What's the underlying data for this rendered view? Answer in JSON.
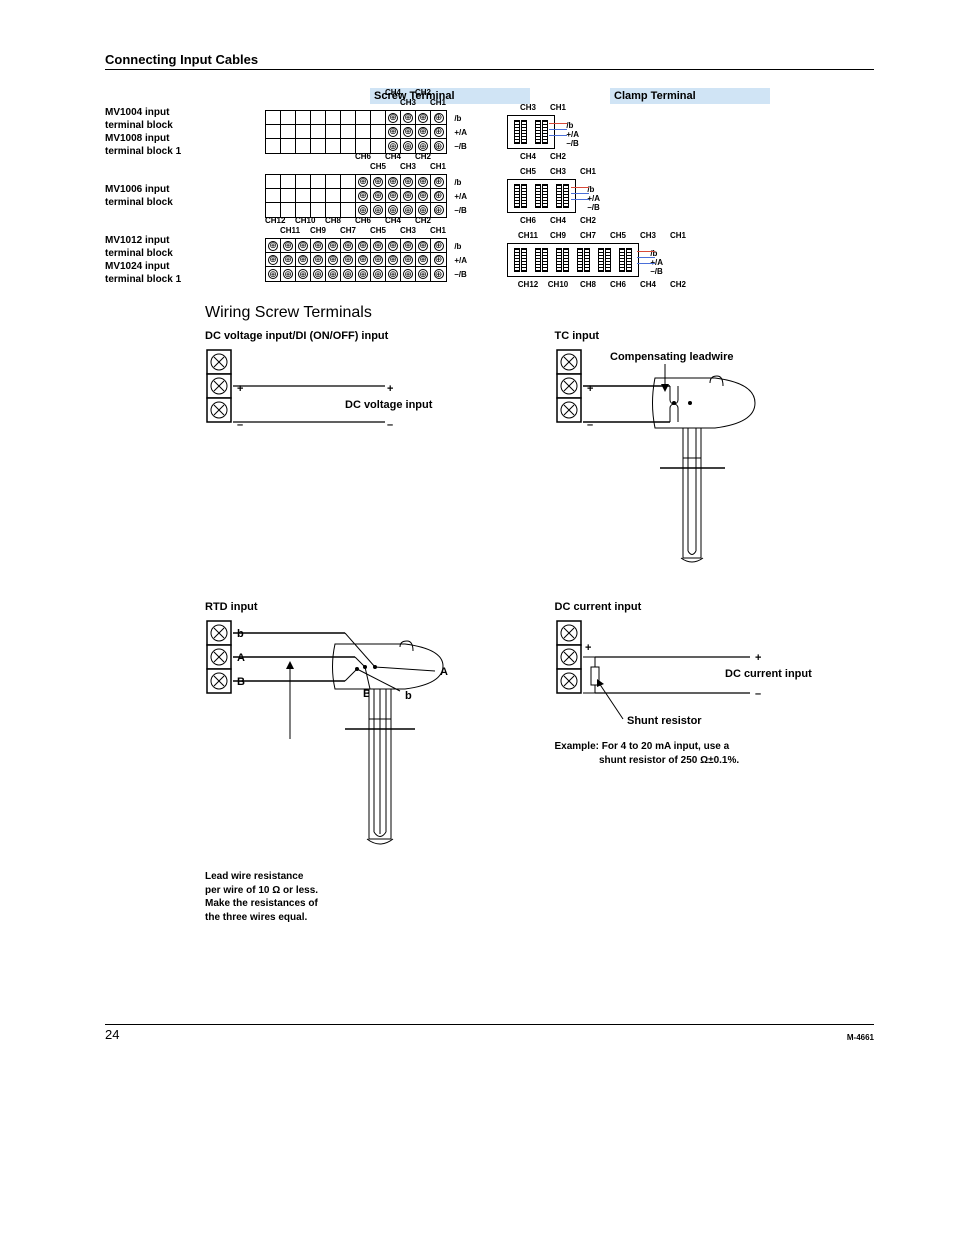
{
  "section_title": "Connecting Input Cables",
  "headers": {
    "screw": "Screw Terminal",
    "clamp": "Clamp Terminal"
  },
  "row_signals": {
    "slash_b": "/b",
    "plus_a": "+/A",
    "minus_b": "–/B"
  },
  "blocks": [
    {
      "label_lines": [
        "MV1004 input",
        "terminal block",
        "MV1008 input",
        "terminal block 1"
      ],
      "screw": {
        "empty_cols": 8,
        "filled_cols": 4,
        "rows": 3,
        "ch_top_upper": [
          "CH4",
          "CH2"
        ],
        "ch_top_lower": [
          "CH3",
          "CH1"
        ]
      },
      "clamp": {
        "pairs": 2,
        "ch_top": [
          "CH3",
          "CH1"
        ],
        "ch_bot": [
          "CH4",
          "CH2"
        ]
      }
    },
    {
      "label_lines": [
        "MV1006 input",
        "terminal block"
      ],
      "screw": {
        "empty_cols": 6,
        "filled_cols": 6,
        "rows": 3,
        "ch_top_upper": [
          "CH6",
          "CH4",
          "CH2"
        ],
        "ch_top_lower": [
          "CH5",
          "CH3",
          "CH1"
        ]
      },
      "clamp": {
        "pairs": 3,
        "ch_top": [
          "CH5",
          "CH3",
          "CH1"
        ],
        "ch_bot": [
          "CH6",
          "CH4",
          "CH2"
        ]
      }
    },
    {
      "label_lines": [
        "MV1012 input",
        "terminal block",
        "MV1024 input",
        "terminal block 1"
      ],
      "screw": {
        "empty_cols": 0,
        "filled_cols": 12,
        "rows": 3,
        "ch_top_upper": [
          "CH12",
          "CH10",
          "CH8",
          "CH6",
          "CH4",
          "CH2"
        ],
        "ch_top_lower": [
          "CH11",
          "CH9",
          "CH7",
          "CH5",
          "CH3",
          "CH1"
        ]
      },
      "clamp": {
        "pairs": 6,
        "ch_top": [
          "CH11",
          "CH9",
          "CH7",
          "CH5",
          "CH3",
          "CH1"
        ],
        "ch_bot": [
          "CH12",
          "CH10",
          "CH8",
          "CH6",
          "CH4",
          "CH2"
        ]
      }
    }
  ],
  "wiring_heading": "Wiring Screw Terminals",
  "wiring": {
    "dc_voltage": {
      "title": "DC voltage input/DI (ON/OFF) input",
      "label": "DC voltage input",
      "plus": "+",
      "minus": "–"
    },
    "tc": {
      "title": "TC input",
      "comp": "Compensating leadwire",
      "plus": "+",
      "minus": "–"
    },
    "rtd": {
      "title": "RTD input",
      "b_small": "b",
      "a_big": "A",
      "b_big": "B",
      "note": "Lead wire resistance per wire of 10 Ω or less. Make the resistances of the three wires equal."
    },
    "dc_current": {
      "title": "DC current input",
      "label": "DC current input",
      "plus": "+",
      "minus": "–",
      "shunt": "Shunt resistor",
      "example_l1": "Example:  For 4 to 20 mA input, use a",
      "example_l2": "shunt resistor of 250 Ω±0.1%."
    }
  },
  "colors": {
    "header_bg": "#d0e4f5",
    "wire_red": "#d94a3a",
    "wire_blue": "#4a6fd9"
  },
  "footer": {
    "page": "24",
    "doc": "M-4661"
  }
}
